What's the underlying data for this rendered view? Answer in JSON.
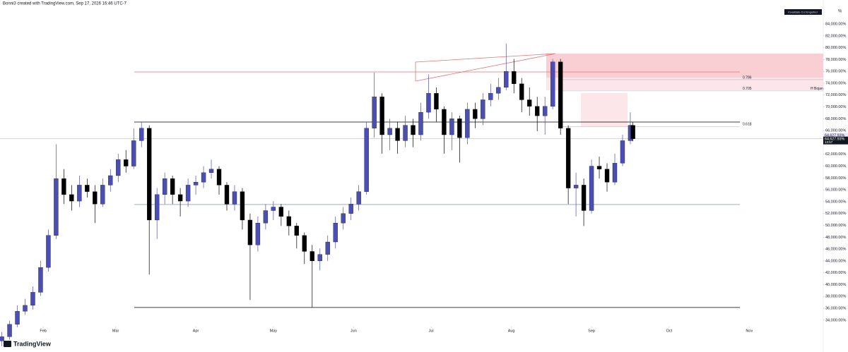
{
  "chart_data": {
    "type": "candlestick",
    "header": "Bonni3 created with TradingView.com, Sep 17, 2026 16:46 UTC-7",
    "logo": "TradingView",
    "y_axis_label": "%",
    "legend_box": "Invalidate  Cut  Engulfed",
    "annotation": "H Bojan",
    "up_color": "#4b4fb3",
    "down_color": "#000000",
    "grid": false,
    "xlim": [
      15.3,
      333.6
    ],
    "xticks": [
      {
        "value": 32,
        "label": "Feb"
      },
      {
        "value": 60,
        "label": "Mar"
      },
      {
        "value": 91,
        "label": "Apr"
      },
      {
        "value": 121,
        "label": "May"
      },
      {
        "value": 152,
        "label": "Jun"
      },
      {
        "value": 182,
        "label": "Jul"
      },
      {
        "value": 213,
        "label": "Aug"
      },
      {
        "value": 244,
        "label": "Sep"
      },
      {
        "value": 274,
        "label": "Oct"
      },
      {
        "value": 305,
        "label": "Nov"
      }
    ],
    "ylim": [
      29100,
      88050
    ],
    "yticks": [
      {
        "value": 34000,
        "label": "34,000.00%"
      },
      {
        "value": 36000,
        "label": "36,000.00%"
      },
      {
        "value": 38000,
        "label": "38,000.00%"
      },
      {
        "value": 40000,
        "label": "40,000.00%"
      },
      {
        "value": 42000,
        "label": "42,000.00%"
      },
      {
        "value": 44000,
        "label": "44,000.00%"
      },
      {
        "value": 46000,
        "label": "46,000.00%"
      },
      {
        "value": 48000,
        "label": "48,000.00%"
      },
      {
        "value": 50000,
        "label": "50,000.00%"
      },
      {
        "value": 52000,
        "label": "52,000.00%"
      },
      {
        "value": 54000,
        "label": "54,000.00%"
      },
      {
        "value": 56000,
        "label": "56,000.00%"
      },
      {
        "value": 58000,
        "label": "58,000.00%"
      },
      {
        "value": 60000,
        "label": "60,000.00%"
      },
      {
        "value": 62000,
        "label": "62,000.00%"
      },
      {
        "value": 64000,
        "label": "64,000.00%"
      },
      {
        "value": 66000,
        "label": "66,000.00%"
      },
      {
        "value": 68000,
        "label": "68,000.00%"
      },
      {
        "value": 70000,
        "label": "70,000.00%"
      },
      {
        "value": 72000,
        "label": "72,000.00%"
      },
      {
        "value": 74000,
        "label": "74,000.00%"
      },
      {
        "value": 76000,
        "label": "76,000.00%"
      },
      {
        "value": 78000,
        "label": "78,000.00%"
      },
      {
        "value": 80000,
        "label": "80,000.00%"
      },
      {
        "value": 82000,
        "label": "82,000.00%"
      },
      {
        "value": 84000,
        "label": "84,000.00%"
      }
    ],
    "x": [
      16,
      19,
      22,
      25,
      28,
      31,
      34,
      37,
      40,
      43,
      46,
      49,
      52,
      55,
      58,
      61,
      64,
      67,
      70,
      73,
      76,
      79,
      82,
      85,
      88,
      91,
      94,
      97,
      100,
      103,
      106,
      109,
      112,
      115,
      118,
      121,
      124,
      127,
      130,
      133,
      136,
      139,
      142,
      145,
      148,
      151,
      154,
      157,
      160,
      163,
      166,
      169,
      172,
      175,
      178,
      181,
      184,
      187,
      190,
      193,
      196,
      199,
      202,
      205,
      208,
      211,
      214,
      217,
      220,
      223,
      226,
      229,
      232,
      235,
      238,
      241,
      244,
      247,
      250,
      253,
      256,
      259,
      260
    ],
    "ohlc": [
      [
        30500,
        32000,
        29600,
        31200
      ],
      [
        31200,
        33900,
        30700,
        33300
      ],
      [
        33300,
        36500,
        32800,
        35500
      ],
      [
        35500,
        37600,
        34900,
        36500
      ],
      [
        36500,
        39700,
        35800,
        38700
      ],
      [
        38700,
        44000,
        38100,
        42900
      ],
      [
        42900,
        49300,
        42200,
        48300
      ],
      [
        48300,
        63700,
        47700,
        57900
      ],
      [
        57900,
        59500,
        53600,
        55200
      ],
      [
        55200,
        56800,
        52500,
        54100
      ],
      [
        54100,
        58400,
        53100,
        56800
      ],
      [
        56800,
        57900,
        54700,
        55700
      ],
      [
        55700,
        56800,
        50400,
        53600
      ],
      [
        53600,
        57900,
        53100,
        56800
      ],
      [
        56800,
        59500,
        55700,
        58400
      ],
      [
        58400,
        62100,
        57300,
        61100
      ],
      [
        61100,
        62700,
        58900,
        60000
      ],
      [
        60000,
        66400,
        59500,
        64300
      ],
      [
        64300,
        67500,
        63200,
        66400
      ],
      [
        66400,
        66900,
        41700,
        50900
      ],
      [
        50900,
        56300,
        47700,
        55200
      ],
      [
        55200,
        58900,
        53600,
        57900
      ],
      [
        57900,
        58400,
        53600,
        55200
      ],
      [
        55200,
        56300,
        51500,
        54100
      ],
      [
        54100,
        57900,
        53100,
        56800
      ],
      [
        56800,
        58400,
        55200,
        57300
      ],
      [
        57300,
        60000,
        56300,
        58900
      ],
      [
        58900,
        61100,
        57900,
        59500
      ],
      [
        59500,
        60000,
        55200,
        56800
      ],
      [
        56800,
        57300,
        52500,
        53600
      ],
      [
        53600,
        56800,
        52500,
        55700
      ],
      [
        55700,
        56300,
        49300,
        50900
      ],
      [
        50900,
        52000,
        37400,
        46700
      ],
      [
        46700,
        51500,
        45600,
        50400
      ],
      [
        50400,
        53600,
        49300,
        52500
      ],
      [
        52500,
        54100,
        50900,
        53100
      ],
      [
        53100,
        53600,
        49900,
        51500
      ],
      [
        51500,
        52500,
        48300,
        49900
      ],
      [
        49900,
        50400,
        46100,
        48300
      ],
      [
        48300,
        48800,
        43500,
        45600
      ],
      [
        45600,
        46700,
        36200,
        44000
      ],
      [
        44000,
        46100,
        42400,
        45100
      ],
      [
        45100,
        48300,
        44000,
        47200
      ],
      [
        47200,
        51500,
        46100,
        50400
      ],
      [
        50400,
        53100,
        49300,
        52000
      ],
      [
        52000,
        54700,
        50900,
        53600
      ],
      [
        53600,
        56800,
        52500,
        55700
      ],
      [
        55700,
        67500,
        55200,
        66400
      ],
      [
        66400,
        75800,
        64800,
        71700
      ],
      [
        71700,
        72300,
        62100,
        65300
      ],
      [
        65300,
        68000,
        62700,
        66400
      ],
      [
        66400,
        67500,
        62100,
        64300
      ],
      [
        64300,
        68500,
        63200,
        66900
      ],
      [
        66900,
        68000,
        63200,
        65300
      ],
      [
        65300,
        70700,
        64300,
        69100
      ],
      [
        69100,
        75500,
        68000,
        72300
      ],
      [
        72300,
        73300,
        67500,
        69600
      ],
      [
        69600,
        70100,
        62100,
        65300
      ],
      [
        65300,
        69100,
        62700,
        68000
      ],
      [
        68000,
        68500,
        60600,
        64800
      ],
      [
        64800,
        70700,
        63700,
        69600
      ],
      [
        69600,
        70700,
        66400,
        68000
      ],
      [
        68000,
        72300,
        66900,
        71200
      ],
      [
        71200,
        73900,
        70100,
        72300
      ],
      [
        72300,
        74900,
        71200,
        73300
      ],
      [
        73300,
        80700,
        72800,
        76000
      ],
      [
        76000,
        78100,
        72300,
        73900
      ],
      [
        73900,
        74900,
        69100,
        71200
      ],
      [
        71200,
        73300,
        68500,
        70100
      ],
      [
        70100,
        71700,
        65900,
        68500
      ],
      [
        68500,
        71700,
        65300,
        70100
      ],
      [
        70100,
        78100,
        69600,
        77600
      ],
      [
        77600,
        78100,
        65300,
        66400
      ],
      [
        66400,
        66900,
        53600,
        56300
      ],
      [
        56300,
        58900,
        51500,
        56800
      ],
      [
        56800,
        57900,
        49900,
        52500
      ],
      [
        52500,
        61100,
        52000,
        60000
      ],
      [
        60000,
        61600,
        57900,
        59500
      ],
      [
        59500,
        60500,
        55700,
        57300
      ],
      [
        57300,
        62100,
        56800,
        60500
      ],
      [
        60500,
        65300,
        60000,
        64300
      ],
      [
        64300,
        69100,
        63700,
        66900
      ],
      [
        66900,
        67400,
        64200,
        64627.93
      ]
    ],
    "levels": [
      {
        "value": 75900,
        "from": 67.2,
        "to": 301.4,
        "color": "#e57373"
      },
      {
        "value": 67450,
        "from": 67.2,
        "to": 301.4,
        "color": "#000000"
      },
      {
        "value": 53520,
        "from": 67.2,
        "to": 301.4,
        "color": "#5b7fa6"
      },
      {
        "value": 36140,
        "from": 67.2,
        "to": 301.4,
        "color": "#000000"
      }
    ],
    "fib_levels": [
      {
        "ratio_label": "0.786",
        "value": 74600
      },
      {
        "ratio_label": "0.705",
        "value": 72700
      },
      {
        "ratio_label": "0.618",
        "value": 66700
      }
    ],
    "price_labels": [
      {
        "value": 64627.93,
        "label": "64,627.93%",
        "color": "#e9e4fb"
      },
      {
        "value": 64627.93,
        "label": "64,627.93%",
        "color": "#131722"
      }
    ],
    "countdown": "13:57"
  }
}
